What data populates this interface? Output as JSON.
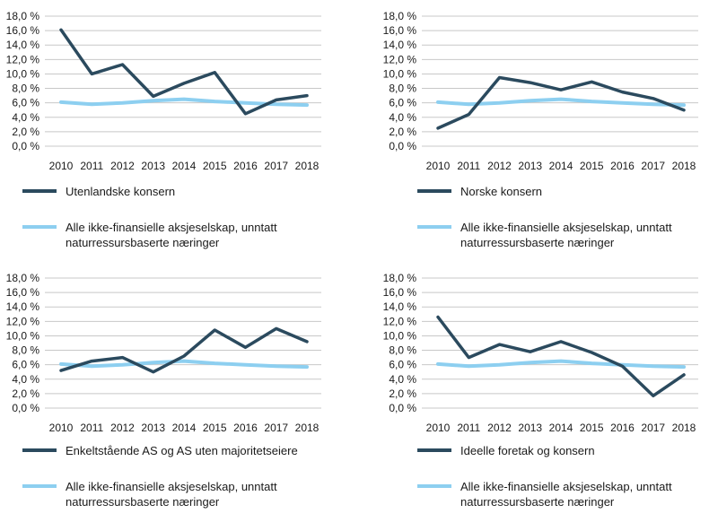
{
  "colors": {
    "series": "#2b4a5e",
    "baseline": "#8dcff0",
    "grid": "#c8c8c8"
  },
  "chart_data": [
    {
      "type": "line",
      "x": [
        2010,
        2011,
        2012,
        2013,
        2014,
        2015,
        2016,
        2017,
        2018
      ],
      "x_labels": [
        "2010",
        "2011",
        "2012",
        "2013",
        "2014",
        "2015",
        "2016",
        "2017",
        "2018"
      ],
      "ylim": [
        0,
        18
      ],
      "y_ticks": [
        "0,0 %",
        "2,0 %",
        "4,0 %",
        "6,0 %",
        "8,0 %",
        "10,0 %",
        "12,0 %",
        "14,0 %",
        "16,0 %",
        "18,0 %"
      ],
      "grid": true,
      "series": [
        {
          "name": "Utenlandske konsern",
          "values": [
            16.1,
            10.0,
            11.3,
            6.9,
            8.7,
            10.2,
            4.5,
            6.4,
            7.0
          ]
        },
        {
          "name": "Alle ikke-finansielle aksjeselskap, unntatt naturressursbaserte næringer",
          "values": [
            6.1,
            5.8,
            6.0,
            6.3,
            6.5,
            6.2,
            6.0,
            5.8,
            5.7
          ]
        }
      ]
    },
    {
      "type": "line",
      "x": [
        2010,
        2011,
        2012,
        2013,
        2014,
        2015,
        2016,
        2017,
        2018
      ],
      "x_labels": [
        "2010",
        "2011",
        "2012",
        "2013",
        "2014",
        "2015",
        "2016",
        "2017",
        "2018"
      ],
      "ylim": [
        0,
        18
      ],
      "y_ticks": [
        "0,0 %",
        "2,0 %",
        "4,0 %",
        "6,0 %",
        "8,0 %",
        "10,0 %",
        "12,0 %",
        "14,0 %",
        "16,0 %",
        "18,0 %"
      ],
      "grid": true,
      "series": [
        {
          "name": "Norske konsern",
          "values": [
            2.5,
            4.4,
            9.5,
            8.8,
            7.8,
            8.9,
            7.5,
            6.6,
            5.0
          ]
        },
        {
          "name": "Alle ikke-finansielle aksjeselskap, unntatt naturressursbaserte næringer",
          "values": [
            6.1,
            5.8,
            6.0,
            6.3,
            6.5,
            6.2,
            6.0,
            5.8,
            5.7
          ]
        }
      ]
    },
    {
      "type": "line",
      "x": [
        2010,
        2011,
        2012,
        2013,
        2014,
        2015,
        2016,
        2017,
        2018
      ],
      "x_labels": [
        "2010",
        "2011",
        "2012",
        "2013",
        "2014",
        "2015",
        "2016",
        "2017",
        "2018"
      ],
      "ylim": [
        0,
        18
      ],
      "y_ticks": [
        "0,0 %",
        "2,0 %",
        "4,0 %",
        "6,0 %",
        "8,0 %",
        "10,0 %",
        "12,0 %",
        "14,0 %",
        "16,0 %",
        "18,0 %"
      ],
      "grid": true,
      "series": [
        {
          "name": "Enkeltstående AS og AS uten majoritetseiere",
          "values": [
            5.2,
            6.5,
            7.0,
            5.0,
            7.2,
            10.8,
            8.4,
            11.0,
            9.2
          ]
        },
        {
          "name": "Alle ikke-finansielle aksjeselskap, unntatt naturressursbaserte næringer",
          "values": [
            6.1,
            5.8,
            6.0,
            6.3,
            6.5,
            6.2,
            6.0,
            5.8,
            5.7
          ]
        }
      ]
    },
    {
      "type": "line",
      "x": [
        2010,
        2011,
        2012,
        2013,
        2014,
        2015,
        2016,
        2017,
        2018
      ],
      "x_labels": [
        "2010",
        "2011",
        "2012",
        "2013",
        "2014",
        "2015",
        "2016",
        "2017",
        "2018"
      ],
      "ylim": [
        0,
        18
      ],
      "y_ticks": [
        "0,0 %",
        "2,0 %",
        "4,0 %",
        "6,0 %",
        "8,0 %",
        "10,0 %",
        "12,0 %",
        "14,0 %",
        "16,0 %",
        "18,0 %"
      ],
      "grid": true,
      "series": [
        {
          "name": "Ideelle foretak og konsern",
          "values": [
            12.6,
            7.0,
            8.8,
            7.8,
            9.2,
            7.7,
            5.8,
            1.7,
            4.6
          ]
        },
        {
          "name": "Alle ikke-finansielle aksjeselskap, unntatt naturressursbaserte næringer",
          "values": [
            6.1,
            5.8,
            6.0,
            6.3,
            6.5,
            6.2,
            6.0,
            5.8,
            5.7
          ]
        }
      ]
    }
  ]
}
